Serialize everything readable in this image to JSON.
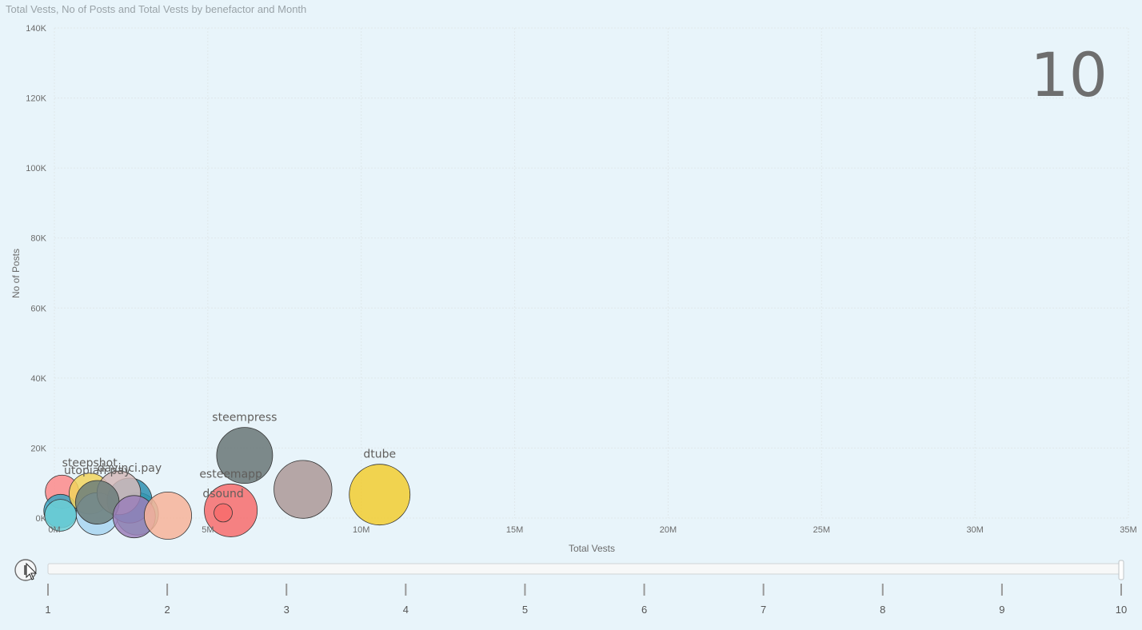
{
  "title": "Total Vests, No of Posts and Total Vests by benefactor and Month",
  "frame_label": "10",
  "play_axis": {
    "ticks": [
      "1",
      "2",
      "3",
      "4",
      "5",
      "6",
      "7",
      "8",
      "9",
      "10"
    ],
    "current": 10
  },
  "chart_data": {
    "type": "scatter",
    "title": "Total Vests, No of Posts and Total Vests by benefactor and Month",
    "xlabel": "Total Vests",
    "ylabel": "No of Posts",
    "xlim": [
      0,
      35000000
    ],
    "ylim": [
      0,
      140000
    ],
    "x_ticks": [
      {
        "value": 0,
        "label": "0M"
      },
      {
        "value": 5000000,
        "label": "5M"
      },
      {
        "value": 10000000,
        "label": "10M"
      },
      {
        "value": 15000000,
        "label": "15M"
      },
      {
        "value": 20000000,
        "label": "20M"
      },
      {
        "value": 25000000,
        "label": "25M"
      },
      {
        "value": 30000000,
        "label": "30M"
      },
      {
        "value": 35000000,
        "label": "35M"
      }
    ],
    "y_ticks": [
      {
        "value": 0,
        "label": "0K"
      },
      {
        "value": 20000,
        "label": "20K"
      },
      {
        "value": 40000,
        "label": "40K"
      },
      {
        "value": 60000,
        "label": "60K"
      },
      {
        "value": 80000,
        "label": "80K"
      },
      {
        "value": 100000,
        "label": "100K"
      },
      {
        "value": 120000,
        "label": "120K"
      },
      {
        "value": 140000,
        "label": "140K"
      }
    ],
    "grid": true,
    "points": [
      {
        "name": "",
        "x": 250000,
        "y": 7500,
        "size": 1000000,
        "color": "#fd8a8a",
        "label_visible": false
      },
      {
        "name": "",
        "x": 200000,
        "y": 2000,
        "size": 1000000,
        "color": "#3aa5c2",
        "label_visible": false
      },
      {
        "name": "",
        "x": 200000,
        "y": 800,
        "size": 900000,
        "color": "#6ccfd6",
        "label_visible": false
      },
      {
        "name": "steepshot",
        "x": 1150000,
        "y": 7000,
        "size": 1500000,
        "color": "#f1d35d",
        "label_visible": true
      },
      {
        "name": "",
        "x": 1400000,
        "y": 1200,
        "size": 1600000,
        "color": "#a8d5f0",
        "label_visible": false
      },
      {
        "name": "",
        "x": 2700000,
        "y": 1200,
        "size": 1600000,
        "color": "#5cc8b0",
        "label_visible": false
      },
      {
        "name": "davinci.pay",
        "x": 2450000,
        "y": 5000,
        "size": 1800000,
        "color": "#2e8fb0",
        "label_visible": true
      },
      {
        "name": "",
        "x": 2100000,
        "y": 7200,
        "size": 1700000,
        "color": "#d4b8b8",
        "label_visible": false
      },
      {
        "name": "utopian.pay",
        "x": 1400000,
        "y": 4500,
        "size": 1700000,
        "color": "#6b7c7a",
        "label_visible": true
      },
      {
        "name": "",
        "x": 2600000,
        "y": 400,
        "size": 1600000,
        "color": "#9b7fb8",
        "label_visible": false
      },
      {
        "name": "",
        "x": 3700000,
        "y": 700,
        "size": 2000000,
        "color": "#f7b399",
        "label_visible": false
      },
      {
        "name": "esteemapp",
        "x": 5750000,
        "y": 2200,
        "size": 2500000,
        "color": "#f76c6c",
        "label_visible": true
      },
      {
        "name": "dsound",
        "x": 5500000,
        "y": 1500,
        "size": 300000,
        "color": "#f76c6c",
        "label_visible": true
      },
      {
        "name": "steempress",
        "x": 6200000,
        "y": 17900,
        "size": 2800000,
        "color": "#687575",
        "label_visible": true
      },
      {
        "name": "",
        "x": 8100000,
        "y": 8200,
        "size": 3000000,
        "color": "#ab9896",
        "label_visible": false
      },
      {
        "name": "dtube",
        "x": 10600000,
        "y": 6700,
        "size": 3300000,
        "color": "#f2cc30",
        "label_visible": true
      }
    ]
  }
}
